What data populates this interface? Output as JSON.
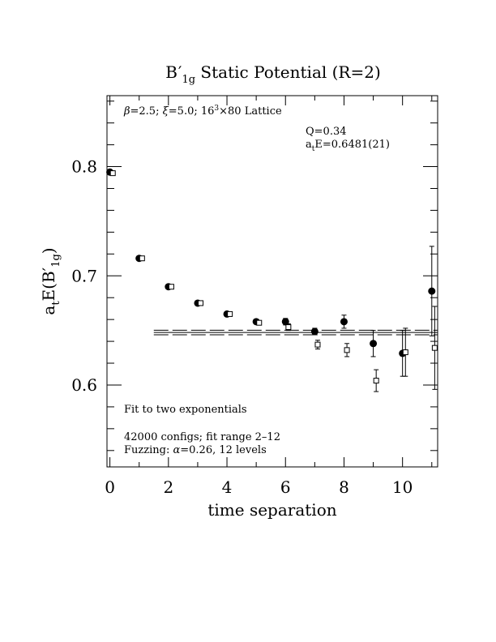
{
  "chart_data": {
    "type": "scatter",
    "title_main": "B",
    "title_prime": "′",
    "title_sub": "1g",
    "title_rest": " Static Potential (R=2)",
    "xlabel": "time separation",
    "ylabel_main": "a",
    "ylabel_sub": "t",
    "ylabel_rest": "E(B",
    "ylabel_prime": "′",
    "ylabel_sub2": "1g",
    "ylabel_close": ")",
    "xlim": [
      -0.1,
      11.2
    ],
    "ylim": [
      0.525,
      0.865
    ],
    "x_ticks": [
      0,
      2,
      4,
      6,
      8,
      10
    ],
    "y_ticks": [
      0.6,
      0.7,
      0.8
    ],
    "x_tick_labels": [
      "0",
      "2",
      "4",
      "6",
      "8",
      "10"
    ],
    "y_tick_labels": [
      "0.6",
      "0.7",
      "0.8"
    ],
    "grid": false,
    "annotations": {
      "lattice": {
        "beta": "β",
        "rest": "=2.5; ",
        "xi": "ξ",
        "rest2": "=5.0; 16",
        "sup": "3",
        "rest3": "×80 Lattice"
      },
      "q_line": "Q=0.34",
      "fit_main": "a",
      "fit_sub": "t",
      "fit_rest": "E=0.6481(21)",
      "fit_desc": "Fit to two exponentials",
      "configs": "42000 configs; fit range 2–12",
      "fuzz_pre": "Fuzzing: ",
      "fuzz_alpha": "α",
      "fuzz_post": "=0.26, 12 levels"
    },
    "fit": {
      "value": 0.6481,
      "error": 0.0021,
      "x_start": 1.5,
      "x_end": 11.2
    },
    "series": [
      {
        "marker": "filled-circle",
        "points": [
          {
            "x": 0,
            "y": 0.795,
            "err": 0.002
          },
          {
            "x": 1,
            "y": 0.716,
            "err": 0.002
          },
          {
            "x": 2,
            "y": 0.69,
            "err": 0.002
          },
          {
            "x": 3,
            "y": 0.675,
            "err": 0.002
          },
          {
            "x": 4,
            "y": 0.665,
            "err": 0.002
          },
          {
            "x": 5,
            "y": 0.658,
            "err": 0.002
          },
          {
            "x": 6,
            "y": 0.658,
            "err": 0.003
          },
          {
            "x": 7,
            "y": 0.649,
            "err": 0.003
          },
          {
            "x": 8,
            "y": 0.658,
            "err": 0.006
          },
          {
            "x": 9,
            "y": 0.638,
            "err": 0.012
          },
          {
            "x": 10,
            "y": 0.629,
            "err": 0.021
          },
          {
            "x": 11,
            "y": 0.686,
            "err": 0.041
          }
        ]
      },
      {
        "marker": "open-square",
        "points": [
          {
            "x": 0.1,
            "y": 0.794,
            "err": 0.002
          },
          {
            "x": 1.1,
            "y": 0.716,
            "err": 0.002
          },
          {
            "x": 2.1,
            "y": 0.69,
            "err": 0.002
          },
          {
            "x": 3.1,
            "y": 0.675,
            "err": 0.002
          },
          {
            "x": 4.1,
            "y": 0.665,
            "err": 0.002
          },
          {
            "x": 5.1,
            "y": 0.657,
            "err": 0.002
          },
          {
            "x": 6.1,
            "y": 0.653,
            "err": 0.003
          },
          {
            "x": 7.1,
            "y": 0.637,
            "err": 0.004
          },
          {
            "x": 8.1,
            "y": 0.632,
            "err": 0.006
          },
          {
            "x": 9.1,
            "y": 0.604,
            "err": 0.01
          },
          {
            "x": 10.1,
            "y": 0.63,
            "err": 0.022
          },
          {
            "x": 11.1,
            "y": 0.634,
            "err": 0.038
          }
        ]
      }
    ]
  }
}
